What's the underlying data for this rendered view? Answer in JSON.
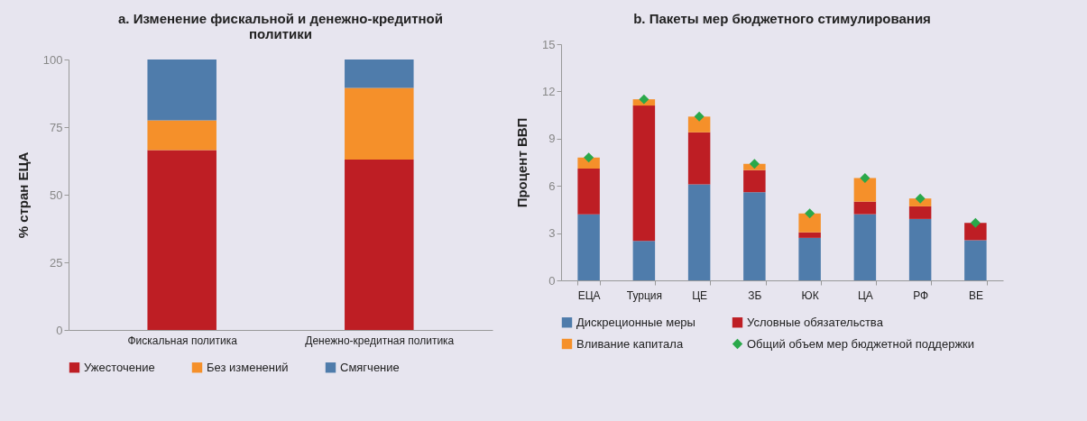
{
  "chart_data": [
    {
      "type": "bar",
      "title": "a. Изменение фискальной и денежно-кредитной политики",
      "ylabel": "% стран ЕЦА",
      "categories": [
        "Фискальная политика",
        "Денежно-кредитная политика"
      ],
      "stacked": true,
      "ylim": [
        0,
        100
      ],
      "yticks": [
        0,
        25,
        50,
        75,
        100
      ],
      "legend": "bottom",
      "series": [
        {
          "name": "Ужесточение",
          "color": "#be1e24",
          "values": [
            66.5,
            63
          ]
        },
        {
          "name": "Без изменений",
          "color": "#f5902a",
          "values": [
            11,
            26.5
          ]
        },
        {
          "name": "Смягчение",
          "color": "#4f7cab",
          "values": [
            22.5,
            10.5
          ]
        }
      ]
    },
    {
      "type": "bar",
      "title": "b. Пакеты мер бюджетного стимулирования",
      "ylabel": "Процент ВВП",
      "categories": [
        "ЕЦА",
        "Турция",
        "ЦЕ",
        "ЗБ",
        "ЮК",
        "ЦА",
        "РФ",
        "ВЕ"
      ],
      "stacked": true,
      "ylim": [
        0,
        15
      ],
      "yticks": [
        0,
        3,
        6,
        9,
        12,
        15
      ],
      "legend": "bottom",
      "marker": "diamond",
      "series": [
        {
          "name": "Дискреционные меры",
          "color": "#4f7cab",
          "values": [
            4.2,
            2.5,
            6.1,
            5.6,
            2.7,
            4.2,
            3.9,
            2.55
          ]
        },
        {
          "name": "Условные обязательства",
          "color": "#be1e24",
          "values": [
            2.9,
            8.6,
            3.3,
            1.4,
            0.35,
            0.8,
            0.8,
            1.1
          ]
        },
        {
          "name": "Вливание капитала",
          "color": "#f5902a",
          "values": [
            0.7,
            0.4,
            1.0,
            0.4,
            1.2,
            1.5,
            0.5,
            0
          ]
        },
        {
          "name": "Общий объем мер бюджетной поддержки",
          "color": "#2aa84a",
          "type": "scatter",
          "values": [
            7.8,
            11.5,
            10.4,
            7.4,
            4.25,
            6.5,
            5.2,
            3.65
          ]
        }
      ]
    }
  ]
}
